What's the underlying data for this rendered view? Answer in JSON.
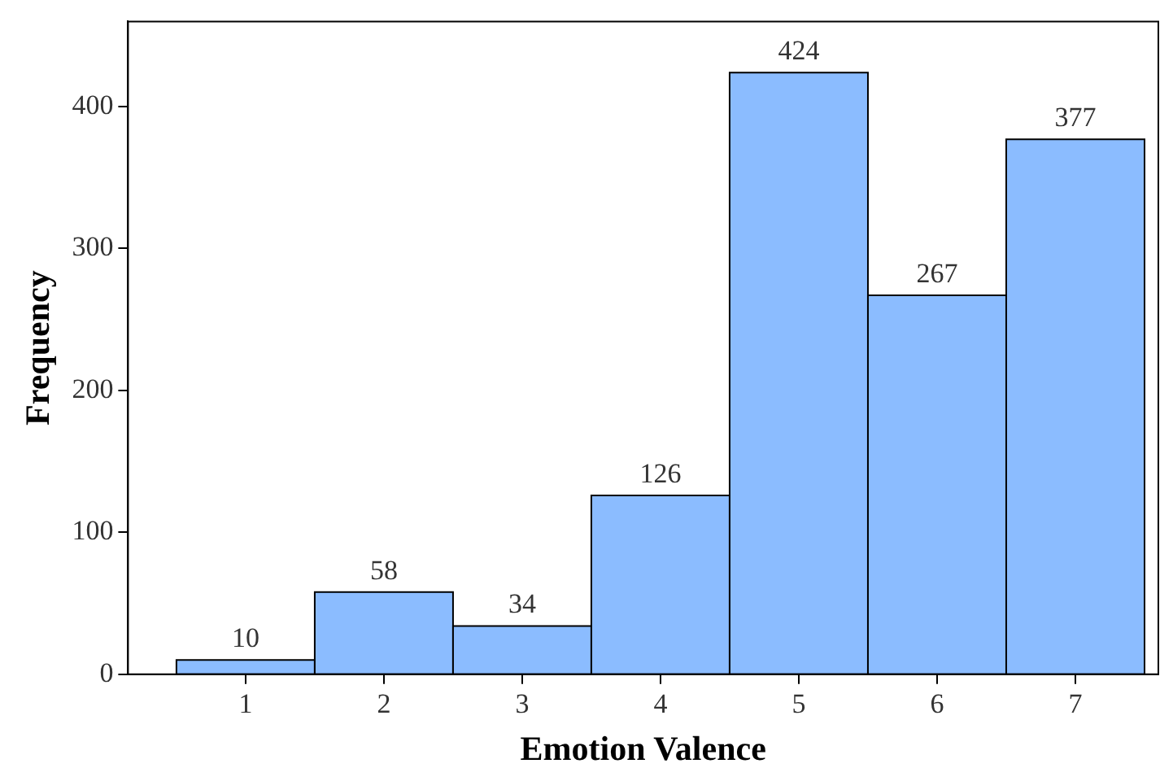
{
  "chart_data": {
    "type": "histogram",
    "xlabel": "Emotion Valence",
    "ylabel": "Frequency",
    "bins": [
      0.5,
      1.5,
      2.5,
      3.5,
      4.5,
      5.5,
      6.5,
      7.5
    ],
    "values": [
      10,
      58,
      34,
      126,
      424,
      267,
      377
    ],
    "color": "#8bbcff",
    "xlim": [
      0.15,
      7.6
    ],
    "xticks": [
      1,
      2,
      3,
      4,
      5,
      6,
      7
    ],
    "ylim": [
      0,
      460
    ],
    "yticks": [
      0,
      100,
      200,
      300,
      400
    ],
    "grid": false,
    "legend": false,
    "data_labels": true
  }
}
